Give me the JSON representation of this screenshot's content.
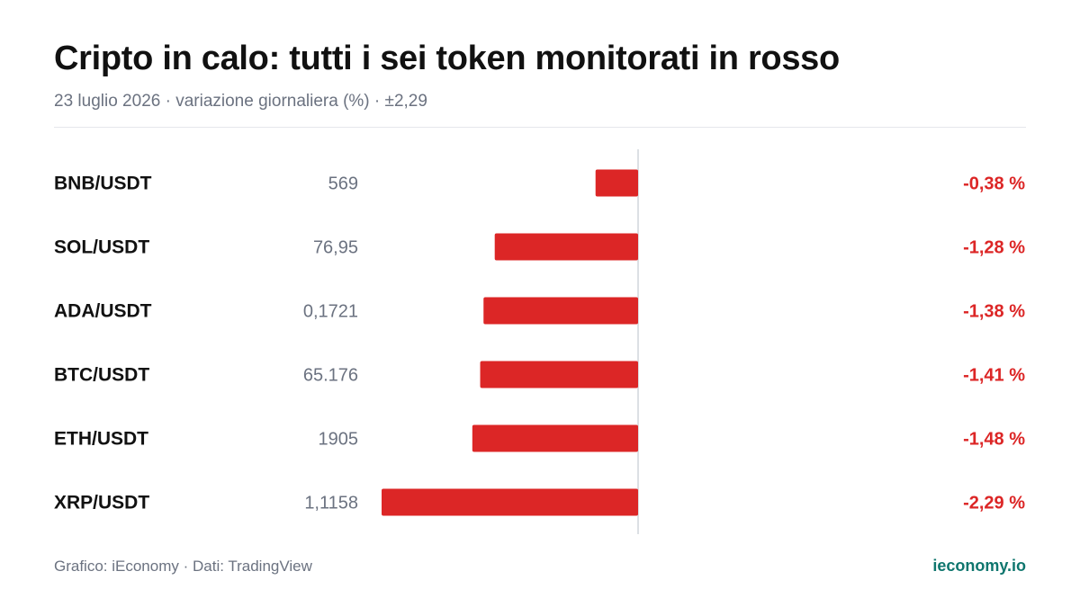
{
  "header": {
    "title": "Cripto in calo: tutti i sei token monitorati in rosso",
    "subtitle": "23 luglio 2026 · variazione giornaliera (%) · ±2,29"
  },
  "footer": {
    "source": "Grafico: iEconomy · Dati: TradingView",
    "brand": "ieconomy.io"
  },
  "colors": {
    "negative": "#dc2626",
    "axis": "#d1d5db",
    "brand": "#0f766e"
  },
  "chart_data": {
    "type": "bar",
    "orientation": "horizontal",
    "title": "Cripto in calo: tutti i sei token monitorati in rosso",
    "subtitle": "23 luglio 2026 · variazione giornaliera (%) · ±2,29",
    "xlim": [
      -2.29,
      2.29
    ],
    "grid": false,
    "rows": [
      {
        "pair": "BNB/USDT",
        "price": "569",
        "change": -0.38,
        "change_label": "-0,38 %"
      },
      {
        "pair": "SOL/USDT",
        "price": "76,95",
        "change": -1.28,
        "change_label": "-1,28 %"
      },
      {
        "pair": "ADA/USDT",
        "price": "0,1721",
        "change": -1.38,
        "change_label": "-1,38 %"
      },
      {
        "pair": "BTC/USDT",
        "price": "65.176",
        "change": -1.41,
        "change_label": "-1,41 %"
      },
      {
        "pair": "ETH/USDT",
        "price": "1905",
        "change": -1.48,
        "change_label": "-1,48 %"
      },
      {
        "pair": "XRP/USDT",
        "price": "1,1158",
        "change": -2.29,
        "change_label": "-2,29 %"
      }
    ]
  }
}
